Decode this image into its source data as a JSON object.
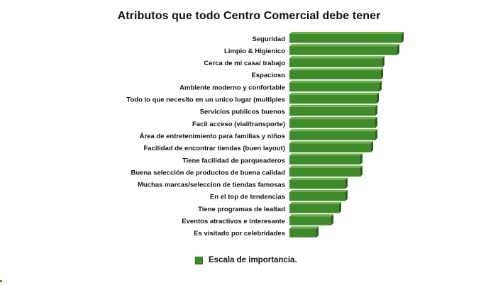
{
  "chart_data": {
    "type": "bar",
    "orientation": "horizontal",
    "title": "Atributos que todo Centro Comercial debe tener",
    "categories": [
      "Seguridad",
      "Limpio & Higienico",
      "Cerca de mi casa/ trabajo",
      "Espacioso",
      "Ambiente moderno y confortable",
      "Todo lo que necesito en un unico lugar (multiples",
      "Servicios publicos buenos",
      "Facil acceso (vial/transporte)",
      "Área de entretenimiento para familias y niños",
      "Facilidad de encontrar tiendas (buen layout)",
      "Tiene facilidad de parqueaderos",
      "Buena selección de productos de buena calidad",
      "Muchas marcas/seleccion de tiendas famosas",
      "En el top de tendencias",
      "Tiene programas de lealtad",
      "Eventos atractivos e interesante",
      "Es visitado por celebridades"
    ],
    "series": [
      {
        "name": "Escala de importancia.",
        "values": [
          158,
          152,
          131,
          129,
          127,
          123,
          121,
          121,
          121,
          115,
          100,
          100,
          79,
          79,
          70,
          59,
          38
        ]
      }
    ],
    "xlim": [
      0,
      160
    ],
    "grid": false,
    "legend_position": "bottom",
    "bar_color": "#3f8a2a",
    "bar_top_color": "#6bb04a",
    "bar_side_color": "#2a5e1a"
  }
}
